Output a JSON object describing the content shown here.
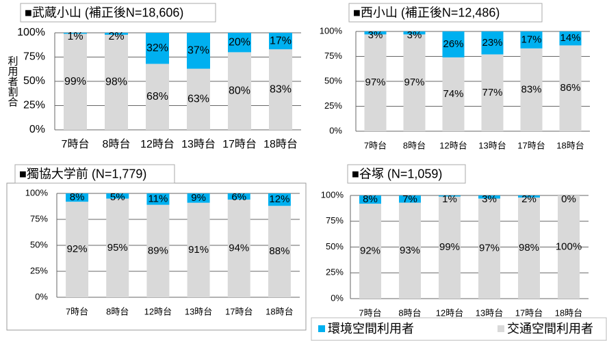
{
  "chart_data": [
    {
      "type": "bar",
      "stacked": true,
      "title": "■武蔵小山 (補正後N=18,606)",
      "y_label": "利用者割合",
      "categories": [
        "7時台",
        "8時台",
        "12時台",
        "13時台",
        "17時台",
        "18時台"
      ],
      "ylim": [
        0,
        100
      ],
      "yticks": [
        {
          "value": 0,
          "label": "0%"
        },
        {
          "value": 25,
          "label": "25%"
        },
        {
          "value": 50,
          "label": "50%"
        },
        {
          "value": 75,
          "label": "75%"
        },
        {
          "value": 100,
          "label": "100%"
        }
      ],
      "grid": true,
      "series": [
        {
          "color": "#00b0f0",
          "values": [
            1,
            2,
            32,
            37,
            20,
            17
          ],
          "value_labels": [
            "1%",
            "2%",
            "32%",
            "37%",
            "20%",
            "17%"
          ]
        },
        {
          "color": "#d9d9d9",
          "values": [
            99,
            98,
            68,
            63,
            80,
            83
          ],
          "value_labels": [
            "99%",
            "98%",
            "68%",
            "63%",
            "80%",
            "83%"
          ]
        }
      ]
    },
    {
      "type": "bar",
      "stacked": true,
      "title": "■西小山 (補正後N=12,486)",
      "categories": [
        "7時台",
        "8時台",
        "12時台",
        "13時台",
        "17時台",
        "18時台"
      ],
      "ylim": [
        0,
        100
      ],
      "yticks": [
        {
          "value": 0,
          "label": "0%"
        },
        {
          "value": 25,
          "label": "25%"
        },
        {
          "value": 50,
          "label": "50%"
        },
        {
          "value": 75,
          "label": "75%"
        },
        {
          "value": 100,
          "label": "100%"
        }
      ],
      "grid": true,
      "series": [
        {
          "color": "#00b0f0",
          "values": [
            3,
            3,
            26,
            23,
            17,
            14
          ],
          "value_labels": [
            "3%",
            "3%",
            "26%",
            "23%",
            "17%",
            "14%"
          ]
        },
        {
          "color": "#d9d9d9",
          "values": [
            97,
            97,
            74,
            77,
            83,
            86
          ],
          "value_labels": [
            "97%",
            "97%",
            "74%",
            "77%",
            "83%",
            "86%"
          ]
        }
      ]
    },
    {
      "type": "bar",
      "stacked": true,
      "title": "■獨協大学前 (N=1,779)",
      "categories": [
        "7時台",
        "8時台",
        "12時台",
        "13時台",
        "17時台",
        "18時台"
      ],
      "ylim": [
        0,
        100
      ],
      "yticks": [
        {
          "value": 0,
          "label": "0%"
        },
        {
          "value": 25,
          "label": "25%"
        },
        {
          "value": 50,
          "label": "50%"
        },
        {
          "value": 75,
          "label": "75%"
        },
        {
          "value": 100,
          "label": "100%"
        }
      ],
      "grid": true,
      "series": [
        {
          "color": "#00b0f0",
          "values": [
            8,
            5,
            11,
            9,
            6,
            12
          ],
          "value_labels": [
            "8%",
            "5%",
            "11%",
            "9%",
            "6%",
            "12%"
          ]
        },
        {
          "color": "#d9d9d9",
          "values": [
            92,
            95,
            89,
            91,
            94,
            88
          ],
          "value_labels": [
            "92%",
            "95%",
            "89%",
            "91%",
            "94%",
            "88%"
          ]
        }
      ]
    },
    {
      "type": "bar",
      "stacked": true,
      "title": "■谷塚 (N=1,059)",
      "categories": [
        "7時台",
        "8時台",
        "12時台",
        "13時台",
        "17時台",
        "18時台"
      ],
      "ylim": [
        0,
        100
      ],
      "yticks": [
        {
          "value": 0,
          "label": "0%"
        },
        {
          "value": 25,
          "label": "25%"
        },
        {
          "value": 50,
          "label": "50%"
        },
        {
          "value": 75,
          "label": "75%"
        },
        {
          "value": 100,
          "label": "100%"
        }
      ],
      "grid": true,
      "series": [
        {
          "name": "環境空間利用者",
          "color": "#00b0f0",
          "values": [
            8,
            7,
            1,
            3,
            2,
            0
          ],
          "value_labels": [
            "8%",
            "7%",
            "1%",
            "3%",
            "2%",
            "0%"
          ]
        },
        {
          "name": "交通空間利用者",
          "color": "#d9d9d9",
          "values": [
            92,
            93,
            99,
            97,
            98,
            100
          ],
          "value_labels": [
            "92%",
            "93%",
            "99%",
            "97%",
            "98%",
            "100%"
          ]
        }
      ]
    }
  ]
}
